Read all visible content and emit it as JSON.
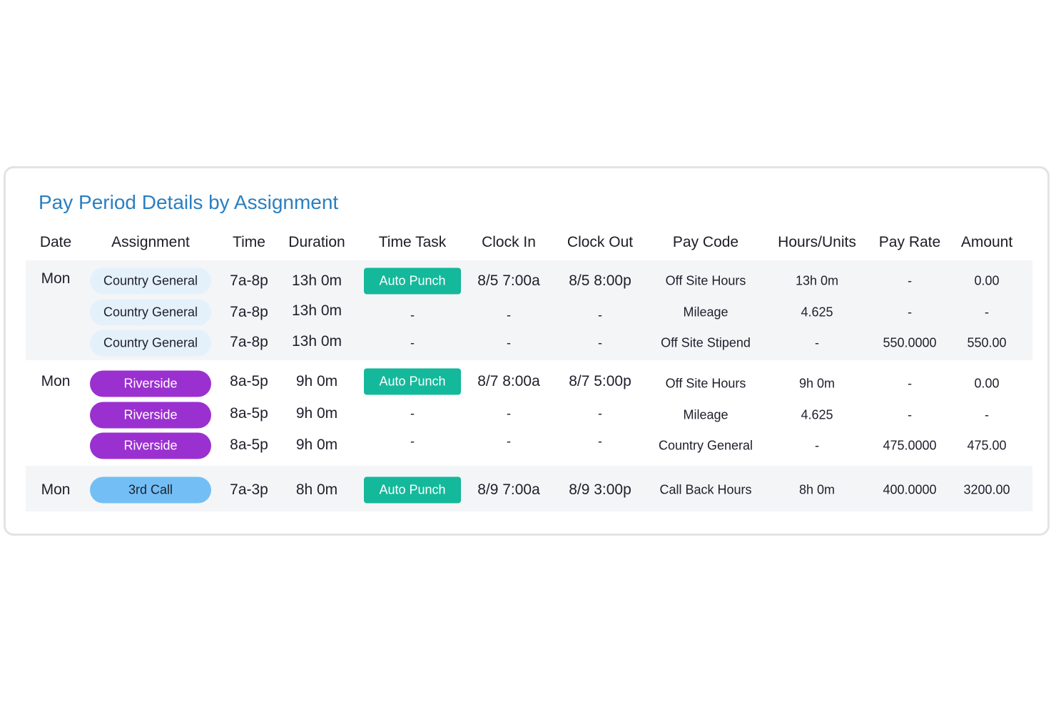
{
  "title": "Pay Period Details by Assignment",
  "colors": {
    "title": "#2a7fc1",
    "auto_punch": "#14b89a",
    "country_general": "#e4f1fb",
    "riverside": "#9b30d0",
    "third_call": "#73bff5",
    "band": "#f4f5f7"
  },
  "headers": {
    "date": "Date",
    "assignment": "Assignment",
    "time": "Time",
    "duration": "Duration",
    "time_task": "Time Task",
    "clock_in": "Clock In",
    "clock_out": "Clock Out",
    "pay_code": "Pay Code",
    "hours_units": "Hours/Units",
    "pay_rate": "Pay Rate",
    "amount": "Amount"
  },
  "rows": [
    {
      "date": "Mon",
      "assignment": "Country General",
      "time": "7a-8p",
      "duration": "13h 0m",
      "time_task": "Auto Punch",
      "clock_in": "8/5 7:00a",
      "clock_out": "8/5 8:00p",
      "pay_code": "Off Site Hours",
      "hours_units": "13h 0m",
      "pay_rate": "-",
      "amount": "0.00"
    },
    {
      "date": "",
      "assignment": "Country General",
      "time": "7a-8p",
      "duration": "13h 0m",
      "time_task": "-",
      "clock_in": "-",
      "clock_out": "-",
      "pay_code": "Mileage",
      "hours_units": "4.625",
      "pay_rate": "-",
      "amount": "-"
    },
    {
      "date": "",
      "assignment": "Country General",
      "time": "7a-8p",
      "duration": "13h 0m",
      "time_task": "-",
      "clock_in": "-",
      "clock_out": "-",
      "pay_code": "Off Site Stipend",
      "hours_units": "-",
      "pay_rate": "550.0000",
      "amount": "550.00"
    },
    {
      "date": "Mon",
      "assignment": "Riverside",
      "time": "8a-5p",
      "duration": "9h 0m",
      "time_task": "Auto Punch",
      "clock_in": "8/7 8:00a",
      "clock_out": "8/7 5:00p",
      "pay_code": "Off Site Hours",
      "hours_units": "9h 0m",
      "pay_rate": "-",
      "amount": "0.00"
    },
    {
      "date": "",
      "assignment": "Riverside",
      "time": "8a-5p",
      "duration": "9h 0m",
      "time_task": "-",
      "clock_in": "-",
      "clock_out": "-",
      "pay_code": "Mileage",
      "hours_units": "4.625",
      "pay_rate": "-",
      "amount": "-"
    },
    {
      "date": "",
      "assignment": "Riverside",
      "time": "8a-5p",
      "duration": "9h 0m",
      "time_task": "-",
      "clock_in": "-",
      "clock_out": "-",
      "pay_code": "Country General",
      "hours_units": "-",
      "pay_rate": "475.0000",
      "amount": "475.00"
    },
    {
      "date": "Mon",
      "assignment": "3rd Call",
      "time": "7a-3p",
      "duration": "8h 0m",
      "time_task": "Auto Punch",
      "clock_in": "8/9 7:00a",
      "clock_out": "8/9 3:00p",
      "pay_code": "Call Back Hours",
      "hours_units": "8h 0m",
      "pay_rate": "400.0000",
      "amount": "3200.00"
    }
  ]
}
